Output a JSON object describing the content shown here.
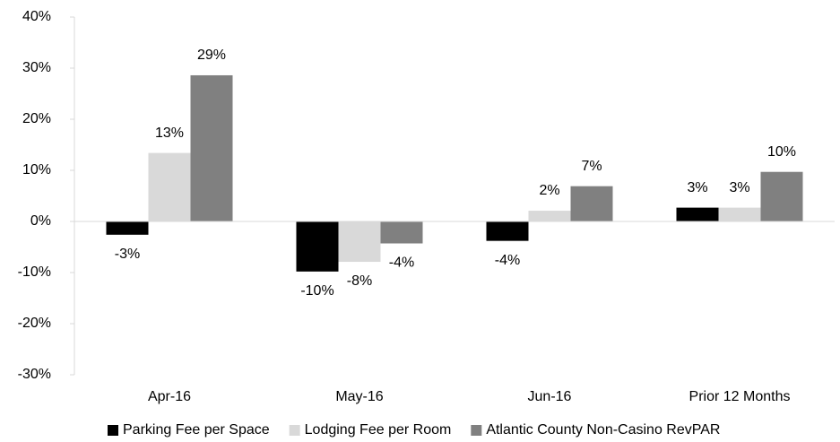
{
  "chart_data": {
    "type": "bar",
    "categories": [
      "Apr-16",
      "May-16",
      "Jun-16",
      "Prior 12 Months"
    ],
    "series": [
      {
        "name": "Parking Fee per Space",
        "color": "#000000",
        "values": [
          -2.6,
          -9.8,
          -3.8,
          2.7
        ],
        "value_labels": [
          "-3%",
          "-10%",
          "-4%",
          "3%"
        ]
      },
      {
        "name": "Lodging Fee per Room",
        "color": "#d9d9d9",
        "values": [
          13.4,
          -7.9,
          2.1,
          2.7
        ],
        "value_labels": [
          "13%",
          "-8%",
          "2%",
          "3%"
        ]
      },
      {
        "name": "Atlantic County Non-Casino RevPAR",
        "color": "#808080",
        "values": [
          28.6,
          -4.3,
          6.9,
          9.7
        ],
        "value_labels": [
          "29%",
          "-4%",
          "7%",
          "10%"
        ]
      }
    ],
    "ylim": [
      -30,
      40
    ],
    "yticks": [
      {
        "value": -30,
        "label": "-30%"
      },
      {
        "value": -20,
        "label": "-20%"
      },
      {
        "value": -10,
        "label": "-10%"
      },
      {
        "value": 0,
        "label": "0%"
      },
      {
        "value": 10,
        "label": "10%"
      },
      {
        "value": 20,
        "label": "20%"
      },
      {
        "value": 30,
        "label": "30%"
      },
      {
        "value": 40,
        "label": "40%"
      }
    ],
    "grid": false,
    "legend": "bottom"
  }
}
